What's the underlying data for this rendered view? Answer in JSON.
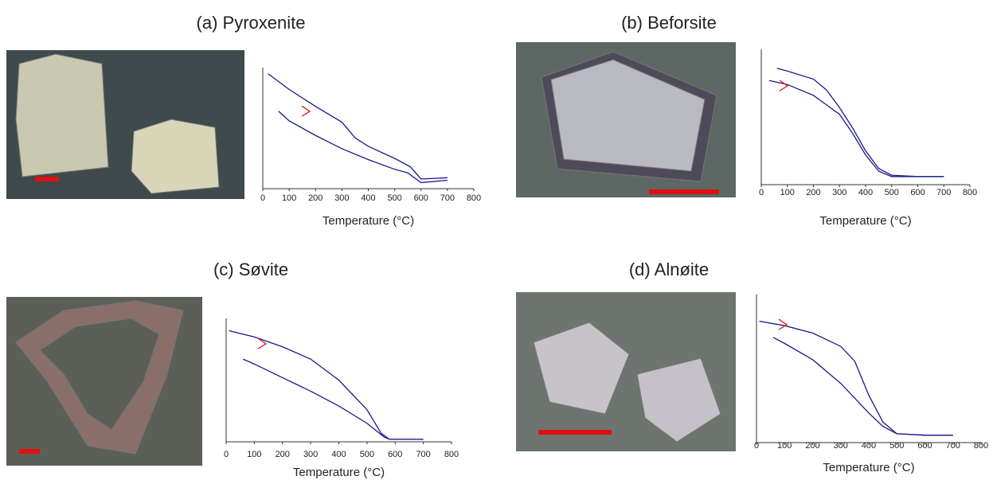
{
  "chart_data": [
    {
      "type": "line",
      "title": "(a)  Pyroxenite",
      "x_label": "Temperature (°C)",
      "color": "#1a1a8c",
      "xlim": [
        0,
        800
      ],
      "xticks": [
        0,
        100,
        200,
        300,
        400,
        500,
        600,
        700,
        800
      ],
      "ylim": [
        0,
        1
      ],
      "series": [
        {
          "x": [
            20,
            100,
            200,
            300,
            350,
            400,
            500,
            560,
            600,
            700
          ],
          "values": [
            0.95,
            0.82,
            0.68,
            0.55,
            0.42,
            0.35,
            0.25,
            0.18,
            0.08,
            0.09
          ]
        },
        {
          "x": [
            60,
            100,
            200,
            300,
            400,
            500,
            550,
            600,
            700
          ],
          "values": [
            0.64,
            0.56,
            0.44,
            0.33,
            0.24,
            0.16,
            0.13,
            0.05,
            0.07
          ]
        }
      ]
    },
    {
      "type": "line",
      "title": "(b)  Beforsite",
      "x_label": "Temperature (°C)",
      "color": "#1a1a8c",
      "xlim": [
        0,
        800
      ],
      "xticks": [
        0,
        100,
        200,
        300,
        400,
        500,
        600,
        700,
        800
      ],
      "ylim": [
        0,
        1
      ],
      "series": [
        {
          "x": [
            30,
            100,
            200,
            300,
            350,
            400,
            450,
            500,
            600,
            700
          ],
          "values": [
            0.77,
            0.74,
            0.66,
            0.52,
            0.38,
            0.22,
            0.1,
            0.06,
            0.06,
            0.06
          ]
        },
        {
          "x": [
            60,
            100,
            200,
            250,
            300,
            350,
            400,
            450,
            500,
            600,
            700
          ],
          "values": [
            0.86,
            0.84,
            0.78,
            0.7,
            0.57,
            0.42,
            0.25,
            0.12,
            0.07,
            0.06,
            0.06
          ]
        }
      ]
    },
    {
      "type": "line",
      "title": "(c) Søvite",
      "x_label": "Temperature (°C)",
      "color": "#1a1a8c",
      "xlim": [
        0,
        800
      ],
      "xticks": [
        0,
        100,
        200,
        300,
        400,
        500,
        600,
        700,
        800
      ],
      "ylim": [
        0,
        1
      ],
      "series": [
        {
          "x": [
            10,
            100,
            200,
            300,
            400,
            500,
            550,
            580,
            700
          ],
          "values": [
            0.9,
            0.85,
            0.77,
            0.67,
            0.5,
            0.26,
            0.07,
            0.02,
            0.02
          ]
        },
        {
          "x": [
            60,
            100,
            200,
            300,
            400,
            500,
            560,
            580,
            700
          ],
          "values": [
            0.67,
            0.63,
            0.52,
            0.41,
            0.29,
            0.15,
            0.04,
            0.02,
            0.02
          ]
        }
      ]
    },
    {
      "type": "line",
      "title": "(d) Alnøite",
      "x_label": "Temperature (°C)",
      "color": "#1a1a8c",
      "xlim": [
        0,
        800
      ],
      "xticks": [
        0,
        100,
        200,
        300,
        400,
        500,
        600,
        700,
        800
      ],
      "ylim": [
        0,
        1
      ],
      "series": [
        {
          "x": [
            10,
            100,
            200,
            300,
            350,
            400,
            450,
            500,
            600,
            700
          ],
          "values": [
            0.82,
            0.79,
            0.74,
            0.65,
            0.55,
            0.32,
            0.14,
            0.06,
            0.05,
            0.05
          ]
        },
        {
          "x": [
            60,
            100,
            200,
            300,
            400,
            450,
            500,
            600,
            700
          ],
          "values": [
            0.71,
            0.67,
            0.56,
            0.4,
            0.2,
            0.11,
            0.06,
            0.05,
            0.05
          ]
        }
      ]
    }
  ]
}
